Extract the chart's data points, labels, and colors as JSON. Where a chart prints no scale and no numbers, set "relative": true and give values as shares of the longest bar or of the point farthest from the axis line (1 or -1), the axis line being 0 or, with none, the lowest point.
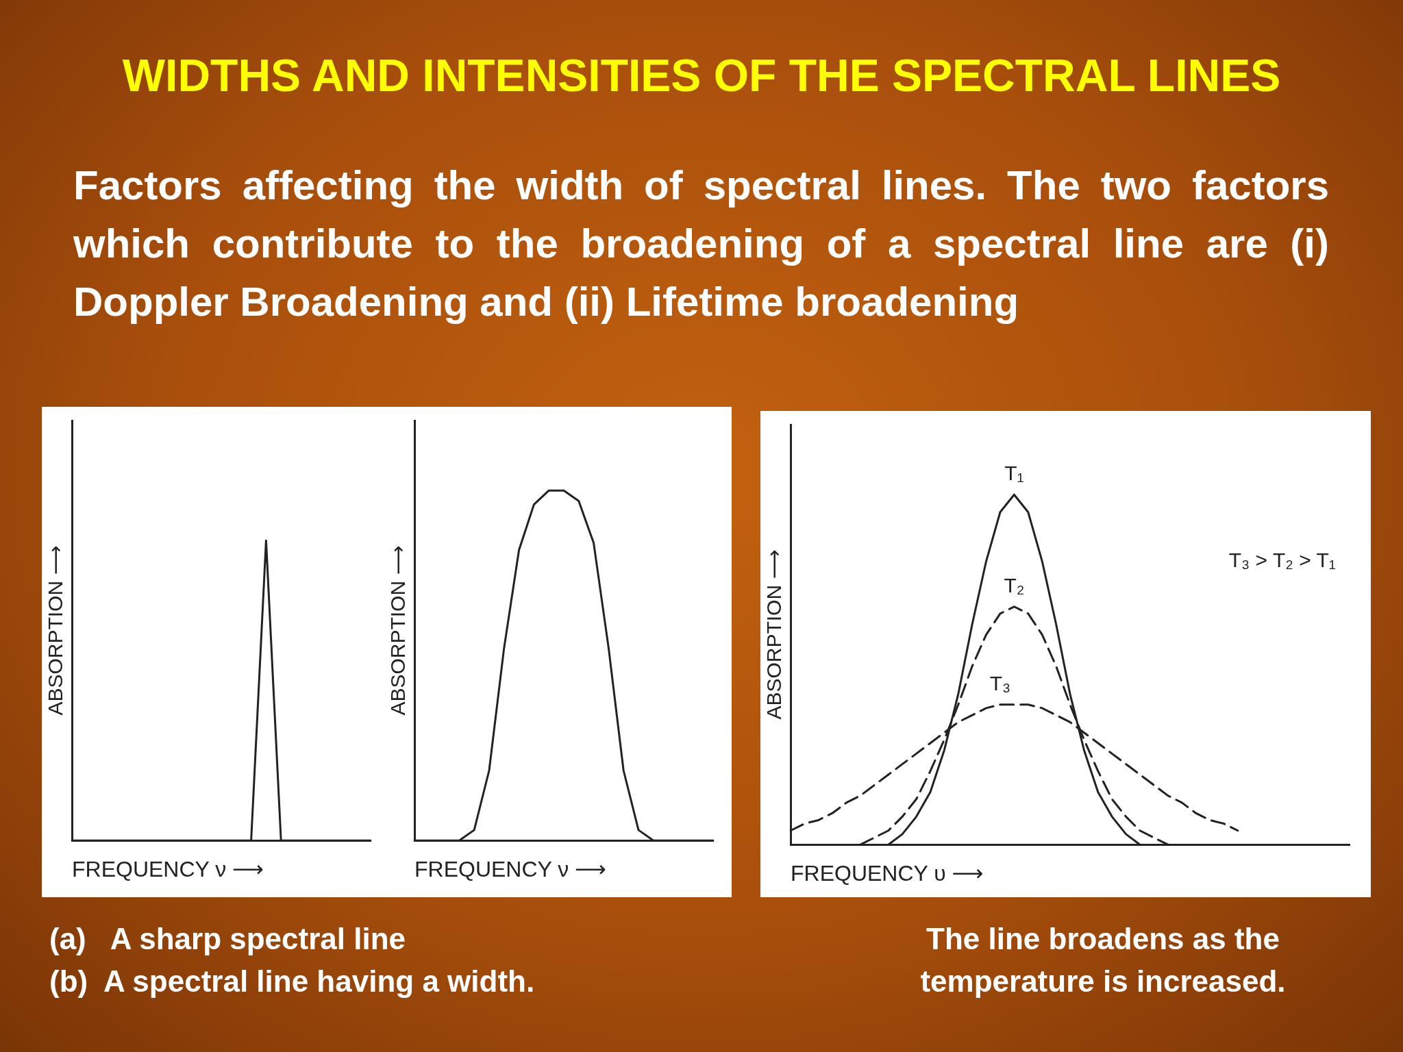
{
  "chart_data": [
    {
      "type": "line",
      "relative": true,
      "title": "WIDTHS AND INTENSITIES OF THE SPECTRAL LINES",
      "subtitle": "Factors affecting the width of spectral lines. The two factors which contribute to the broadening of a spectral line are (i) Doppler Broadening and (ii) Lifetime broadening",
      "xlabel": "FREQUENCY ν ⟶",
      "ylabel": "ABSORPTION ⟶",
      "categories": [
        null,
        null,
        null,
        null,
        null,
        null,
        null,
        null,
        null,
        null,
        null,
        null,
        null,
        null,
        null,
        null,
        null,
        null,
        null,
        null,
        null
      ],
      "values": [
        0,
        0,
        0,
        0,
        0,
        0,
        0,
        0,
        0,
        0,
        0,
        0,
        0,
        1,
        0,
        0,
        0,
        0,
        0,
        0,
        0
      ],
      "color": "#222222",
      "grid": false,
      "legend": false,
      "marker": "none",
      "line_style": "solid",
      "annotations": [
        "(a)   A sharp spectral line"
      ]
    },
    {
      "type": "line",
      "relative": true,
      "xlabel": "FREQUENCY ν ⟶",
      "ylabel": "ABSORPTION ⟶",
      "categories": [
        null,
        null,
        null,
        null,
        null,
        null,
        null,
        null,
        null,
        null,
        null,
        null,
        null,
        null,
        null,
        null,
        null,
        null,
        null,
        null,
        null
      ],
      "values": [
        0,
        0,
        0,
        0,
        0.03,
        0.2,
        0.55,
        0.83,
        0.96,
        1,
        1,
        0.97,
        0.85,
        0.55,
        0.2,
        0.03,
        0,
        0,
        0,
        0,
        0
      ],
      "color": "#222222",
      "grid": false,
      "legend": false,
      "marker": "none",
      "line_style": "solid",
      "annotations": [
        "(b)  A spectral line having a width."
      ]
    },
    {
      "type": "line",
      "relative": true,
      "xlabel": "FREQUENCY υ ⟶",
      "ylabel": "ABSORPTION ⟶",
      "categories": [
        null,
        null,
        null,
        null,
        null,
        null,
        null,
        null,
        null,
        null,
        null,
        null,
        null,
        null,
        null,
        null,
        null,
        null,
        null,
        null,
        null,
        null,
        null,
        null,
        null,
        null,
        null,
        null,
        null,
        null,
        null,
        null,
        null,
        null,
        null,
        null,
        null,
        null,
        null,
        null,
        null
      ],
      "grid": false,
      "legend": false,
      "marker": "none",
      "series": [
        {
          "name": "T₁",
          "color": "#222222",
          "line_style": "solid",
          "values": [
            null,
            null,
            null,
            null,
            null,
            null,
            null,
            0,
            0.03,
            0.08,
            0.15,
            0.27,
            0.43,
            0.63,
            0.81,
            0.95,
            1,
            0.95,
            0.81,
            0.63,
            0.43,
            0.27,
            0.15,
            0.08,
            0.03,
            0,
            null,
            null,
            null,
            null,
            null,
            null,
            null,
            null,
            null,
            null,
            null,
            null,
            null,
            null,
            null
          ]
        },
        {
          "name": "T₂",
          "color": "#222222",
          "line_style": "dashed",
          "values": [
            null,
            null,
            null,
            null,
            null,
            0,
            0.02,
            0.04,
            0.08,
            0.13,
            0.21,
            0.3,
            0.4,
            0.51,
            0.6,
            0.66,
            0.68,
            0.66,
            0.6,
            0.51,
            0.4,
            0.3,
            0.21,
            0.13,
            0.08,
            0.04,
            0.02,
            0,
            null,
            null,
            null,
            null,
            null,
            null,
            null,
            null,
            null,
            null,
            null,
            null,
            null
          ]
        },
        {
          "name": "T₃",
          "color": "#222222",
          "line_style": "dashed",
          "values": [
            0.04,
            0.06,
            0.07,
            0.09,
            0.12,
            0.14,
            0.17,
            0.2,
            0.23,
            0.26,
            0.29,
            0.32,
            0.35,
            0.37,
            0.39,
            0.4,
            0.4,
            0.4,
            0.39,
            0.37,
            0.35,
            0.32,
            0.29,
            0.26,
            0.23,
            0.2,
            0.17,
            0.14,
            0.12,
            0.09,
            0.07,
            0.06,
            0.04,
            null,
            null,
            null,
            null,
            null,
            null,
            null,
            null
          ]
        }
      ],
      "annotations": [
        "The line broadens as the temperature is increased.",
        "T₃ > T₂ > T₁"
      ]
    }
  ]
}
